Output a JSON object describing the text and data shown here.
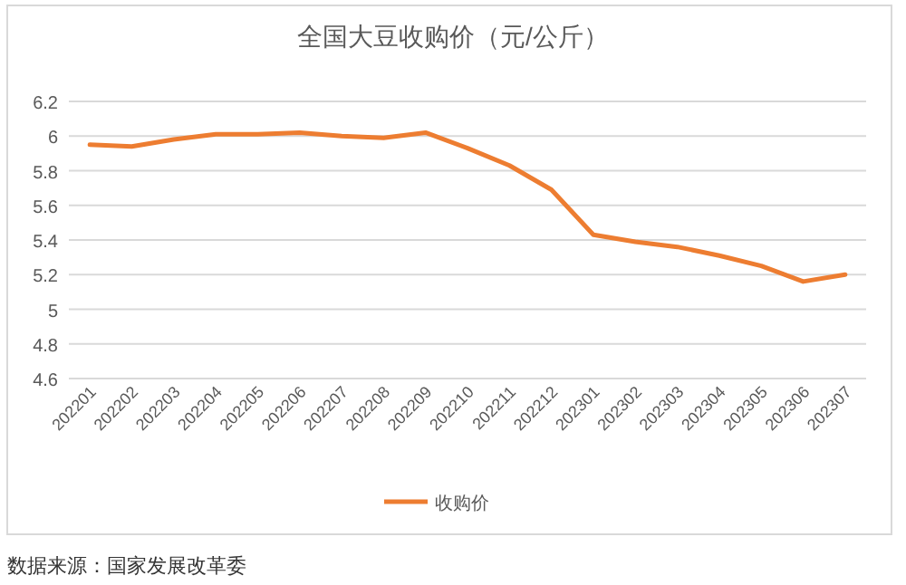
{
  "chart_data": {
    "type": "line",
    "title": "全国大豆收购价（元/公斤）",
    "categories": [
      "202201",
      "202202",
      "202203",
      "202204",
      "202205",
      "202206",
      "202207",
      "202208",
      "202209",
      "202210",
      "202211",
      "202212",
      "202301",
      "202302",
      "202303",
      "202304",
      "202305",
      "202306",
      "202307"
    ],
    "series": [
      {
        "name": "收购价",
        "color": "#ed7d31",
        "values": [
          5.95,
          5.94,
          5.98,
          6.01,
          6.01,
          6.02,
          6.0,
          5.99,
          6.02,
          5.93,
          5.83,
          5.69,
          5.43,
          5.39,
          5.36,
          5.31,
          5.25,
          5.16,
          5.2
        ]
      }
    ],
    "ylim": [
      4.6,
      6.2
    ],
    "yticks": [
      4.6,
      4.8,
      5,
      5.2,
      5.4,
      5.6,
      5.8,
      6,
      6.2
    ],
    "grid": "y",
    "legend": "bottom",
    "marker": "none",
    "line_style": "solid",
    "annotations": [
      "数据来源：国家发展改革委"
    ]
  }
}
